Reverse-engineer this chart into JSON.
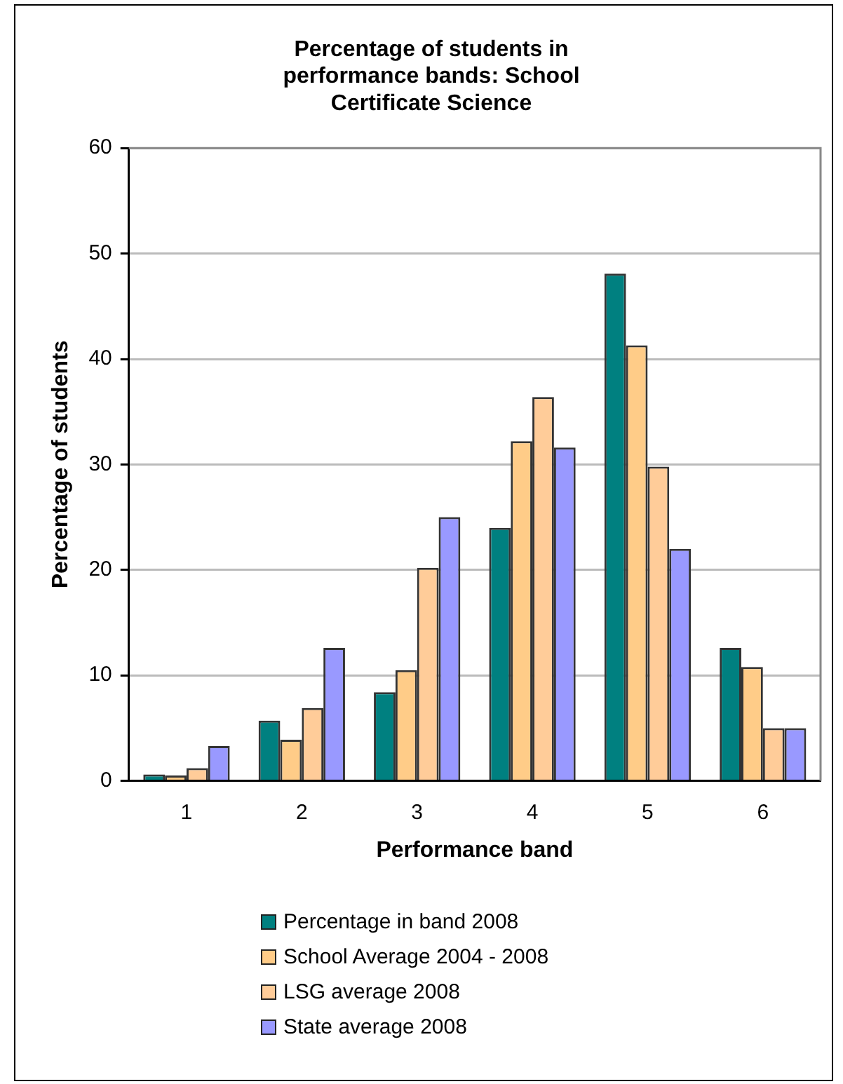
{
  "chart_data": {
    "type": "bar",
    "title": "Percentage of students in performance bands: School Certificate Science",
    "xlabel": "Performance band",
    "ylabel": "Percentage of students",
    "categories": [
      "1",
      "2",
      "3",
      "4",
      "5",
      "6"
    ],
    "series": [
      {
        "name": "Percentage in band 2008",
        "color": "#008080",
        "values": [
          0.6,
          5.7,
          8.4,
          24.0,
          48.1,
          12.6
        ]
      },
      {
        "name": "School Average 2004 - 2008",
        "color": "#ffcc88",
        "values": [
          0.5,
          3.9,
          10.5,
          32.2,
          41.3,
          10.8
        ]
      },
      {
        "name": "LSG average 2008",
        "color": "#ffcc99",
        "values": [
          1.2,
          6.9,
          20.2,
          36.4,
          29.8,
          5.0
        ]
      },
      {
        "name": "State average 2008",
        "color": "#9999ff",
        "values": [
          3.3,
          12.6,
          25.0,
          31.6,
          22.0,
          5.0
        ]
      }
    ],
    "ylim": [
      0,
      60
    ],
    "yticks": [
      0,
      10,
      20,
      30,
      40,
      50,
      60
    ],
    "grid": "y",
    "legend": "bottom"
  }
}
